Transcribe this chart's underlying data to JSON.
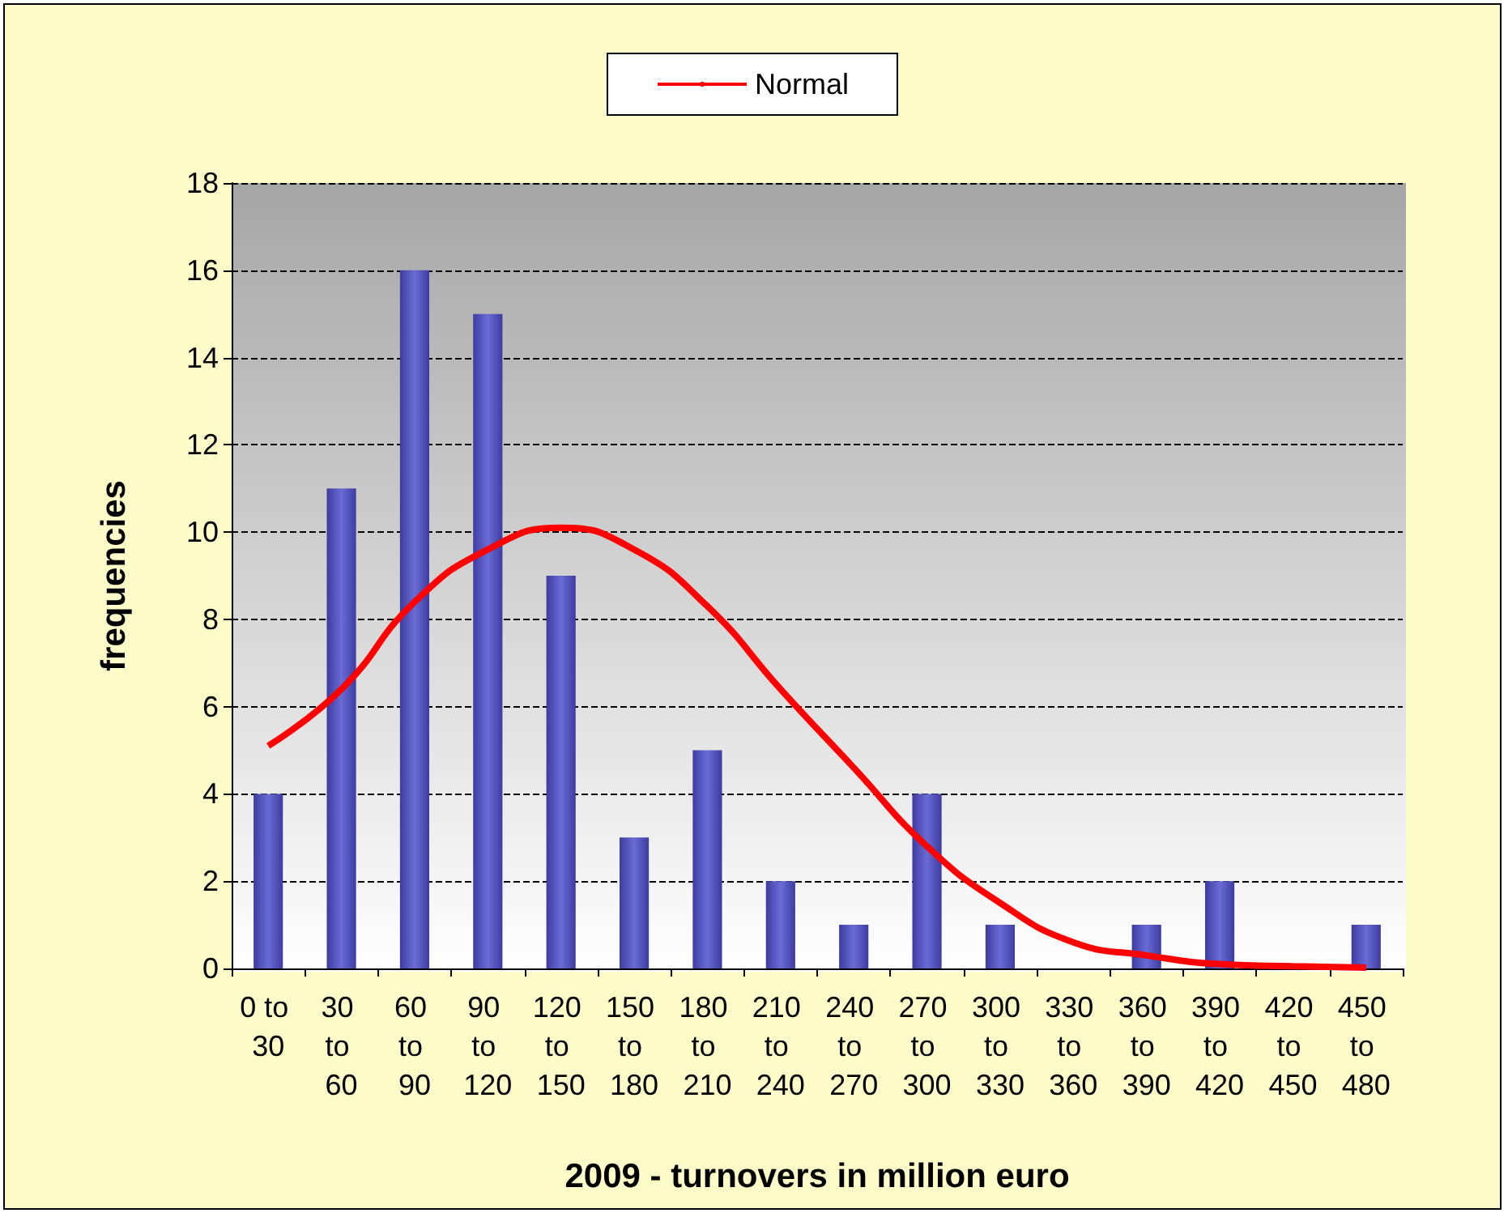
{
  "chart_data": {
    "type": "bar",
    "xlabel": "2009 - turnovers in million euro",
    "ylabel": "frequencies",
    "categories": [
      "0 to 30",
      "30 to 60",
      "60 to 90",
      "90 to 120",
      "120 to 150",
      "150 to 180",
      "180 to 210",
      "210 to 240",
      "240 to 270",
      "270 to 300",
      "300 to 330",
      "330 to 360",
      "360 to 390",
      "390 to 420",
      "420 to 450",
      "450 to 480"
    ],
    "series": [
      {
        "color": "#6b6bd6",
        "values": [
          4,
          11,
          16,
          15,
          9,
          3,
          5,
          2,
          1,
          4,
          1,
          0,
          1,
          2,
          0,
          1
        ]
      },
      {
        "type": "line",
        "name": "Normal",
        "color": "#ff0000",
        "values": [
          5.1,
          6.4,
          8.4,
          9.6,
          10.1,
          9.6,
          8.3,
          6.4,
          4.6,
          2.8,
          1.5,
          0.6,
          0.3,
          0.1,
          0.05,
          0.02
        ]
      }
    ],
    "ylim": [
      0,
      18
    ],
    "yticks": [
      0,
      2,
      4,
      6,
      8,
      10,
      12,
      14,
      16,
      18
    ],
    "grid": "y",
    "legend": "top",
    "marker": "none",
    "line_style": "solid"
  }
}
